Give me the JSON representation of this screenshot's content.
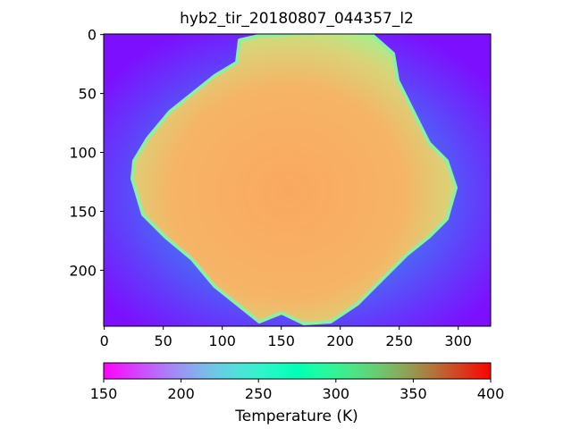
{
  "chart_data": {
    "type": "image",
    "title": "hyb2_tir_20180807_044357_l2",
    "xlim": [
      -0.5,
      327.5
    ],
    "ylim": [
      247.5,
      -0.5
    ],
    "xticks": [
      0,
      50,
      100,
      150,
      200,
      250,
      300
    ],
    "yticks": [
      0,
      50,
      100,
      150,
      200
    ],
    "colormap": "rainbow",
    "colorbar": {
      "label": "Temperature (K)",
      "lim": [
        150,
        400
      ],
      "ticks": [
        150,
        200,
        250,
        300,
        350,
        400
      ]
    }
  }
}
